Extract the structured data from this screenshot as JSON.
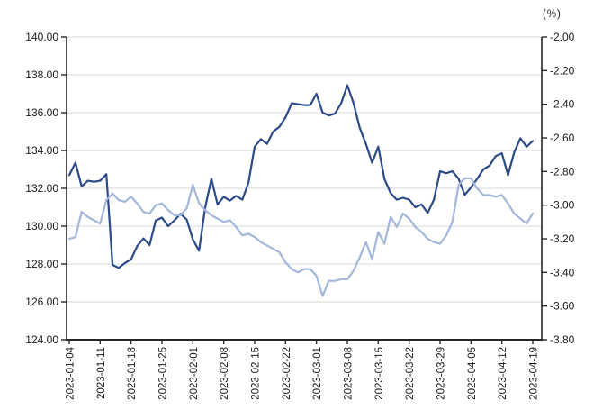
{
  "chart_data": {
    "type": "line",
    "title": "",
    "right_axis_unit": "(%)",
    "legend": "none",
    "grid": true,
    "colors": {
      "grid": "#d9d9d9",
      "axis": "#262626",
      "tick_text": "#1a1a1a",
      "series_dark": "#2c4a87",
      "series_light": "#a3b6dc"
    },
    "x_tick_labels": [
      "2023-01-04",
      "2023-01-11",
      "2023-01-18",
      "2023-01-25",
      "2023-02-01",
      "2023-02-08",
      "2023-02-15",
      "2023-02-22",
      "2023-03-01",
      "2023-03-08",
      "2023-03-15",
      "2023-03-22",
      "2023-03-29",
      "2023-04-05",
      "2023-04-12",
      "2023-04-19"
    ],
    "left_axis": {
      "min": 124,
      "max": 140,
      "step": 2,
      "ticks": [
        "140.00",
        "138.00",
        "136.00",
        "134.00",
        "132.00",
        "130.00",
        "128.00",
        "126.00",
        "124.00"
      ]
    },
    "right_axis": {
      "min": -3.8,
      "max": -2.0,
      "step": 0.2,
      "ticks": [
        "-2.00",
        "-2.20",
        "-2.40",
        "-2.60",
        "-2.80",
        "-3.00",
        "-3.20",
        "-3.40",
        "-3.60",
        "-3.80"
      ]
    },
    "series": [
      {
        "name": "dark-blue-index-left-axis",
        "axis": "left",
        "color": "#2c4a87",
        "width": 2.2,
        "values": [
          132.7,
          133.35,
          132.1,
          132.4,
          132.35,
          132.4,
          132.75,
          127.95,
          127.8,
          128.05,
          128.25,
          128.95,
          129.35,
          129.0,
          130.3,
          130.45,
          130.0,
          130.3,
          130.65,
          130.35,
          129.3,
          128.7,
          131.0,
          132.5,
          131.15,
          131.55,
          131.35,
          131.6,
          131.4,
          132.3,
          134.2,
          134.6,
          134.35,
          135.0,
          135.25,
          135.75,
          136.5,
          136.45,
          136.4,
          136.4,
          137.0,
          136.0,
          135.85,
          135.95,
          136.5,
          137.45,
          136.5,
          135.2,
          134.35,
          133.35,
          134.2,
          132.5,
          131.75,
          131.4,
          131.5,
          131.4,
          131.0,
          131.15,
          130.7,
          131.4,
          132.9,
          132.8,
          132.9,
          132.5,
          131.65,
          132.05,
          132.5,
          133.0,
          133.2,
          133.7,
          133.85,
          132.7,
          133.9,
          134.65,
          134.2,
          134.5
        ]
      },
      {
        "name": "light-blue-rate-right-axis",
        "axis": "right",
        "color": "#a3b6dc",
        "width": 2.2,
        "values": [
          -3.2,
          -3.19,
          -3.04,
          -3.07,
          -3.09,
          -3.11,
          -2.97,
          -2.93,
          -2.97,
          -2.98,
          -2.95,
          -2.99,
          -3.04,
          -3.05,
          -3.0,
          -2.99,
          -3.03,
          -3.06,
          -3.06,
          -3.02,
          -2.88,
          -2.99,
          -3.03,
          -3.06,
          -3.08,
          -3.1,
          -3.09,
          -3.13,
          -3.18,
          -3.17,
          -3.19,
          -3.22,
          -3.24,
          -3.26,
          -3.28,
          -3.34,
          -3.38,
          -3.4,
          -3.38,
          -3.38,
          -3.42,
          -3.54,
          -3.45,
          -3.45,
          -3.44,
          -3.44,
          -3.39,
          -3.31,
          -3.22,
          -3.32,
          -3.16,
          -3.23,
          -3.07,
          -3.13,
          -3.05,
          -3.08,
          -3.13,
          -3.16,
          -3.2,
          -3.22,
          -3.23,
          -3.18,
          -3.1,
          -2.88,
          -2.84,
          -2.84,
          -2.9,
          -2.94,
          -2.94,
          -2.95,
          -2.94,
          -2.99,
          -3.05,
          -3.08,
          -3.11,
          -3.05
        ]
      }
    ]
  }
}
